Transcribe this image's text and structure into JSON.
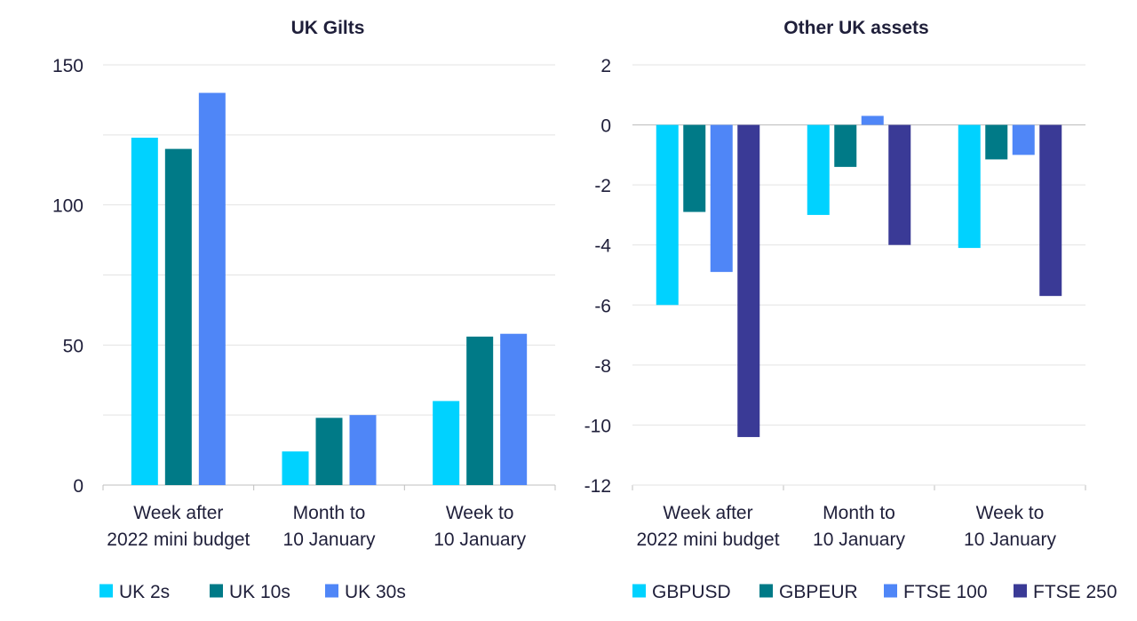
{
  "chart_data": [
    {
      "type": "bar",
      "title": "UK Gilts",
      "categories": [
        [
          "Week after",
          "2022 mini budget"
        ],
        [
          "Month to",
          "10 January"
        ],
        [
          "Week to",
          "10 January"
        ]
      ],
      "series": [
        {
          "name": "UK 2s",
          "color": "#00d2ff",
          "values": [
            124,
            12,
            30
          ]
        },
        {
          "name": "UK 10s",
          "color": "#007a87",
          "values": [
            120,
            24,
            53
          ]
        },
        {
          "name": "UK 30s",
          "color": "#4f86f7",
          "values": [
            140,
            25,
            54
          ]
        }
      ],
      "ylim": [
        0,
        150
      ],
      "yticks": [
        0,
        50,
        100,
        150
      ],
      "gridlines": [
        0,
        25,
        50,
        75,
        100,
        125,
        150
      ],
      "xlabel": "",
      "ylabel": "",
      "legend": "bottom"
    },
    {
      "type": "bar",
      "title": "Other UK assets",
      "categories": [
        [
          "Week after",
          "2022 mini budget"
        ],
        [
          "Month to",
          "10 January"
        ],
        [
          "Week to",
          "10 January"
        ]
      ],
      "series": [
        {
          "name": "GBPUSD",
          "color": "#00d2ff",
          "values": [
            -6.0,
            -3.0,
            -4.1
          ]
        },
        {
          "name": "GBPEUR",
          "color": "#007a87",
          "values": [
            -2.9,
            -1.4,
            -1.15
          ]
        },
        {
          "name": "FTSE 100",
          "color": "#4f86f7",
          "values": [
            -4.9,
            0.3,
            -1.0
          ]
        },
        {
          "name": "FTSE 250",
          "color": "#3a3a96",
          "values": [
            -10.4,
            -4.0,
            -5.7
          ]
        }
      ],
      "ylim": [
        -12,
        2
      ],
      "yticks": [
        2,
        0,
        -2,
        -4,
        -6,
        -8,
        -10,
        -12
      ],
      "gridlines": [
        2,
        0,
        -2,
        -4,
        -6,
        -8,
        -10,
        -12
      ],
      "xlabel": "",
      "ylabel": "",
      "legend": "bottom"
    }
  ]
}
